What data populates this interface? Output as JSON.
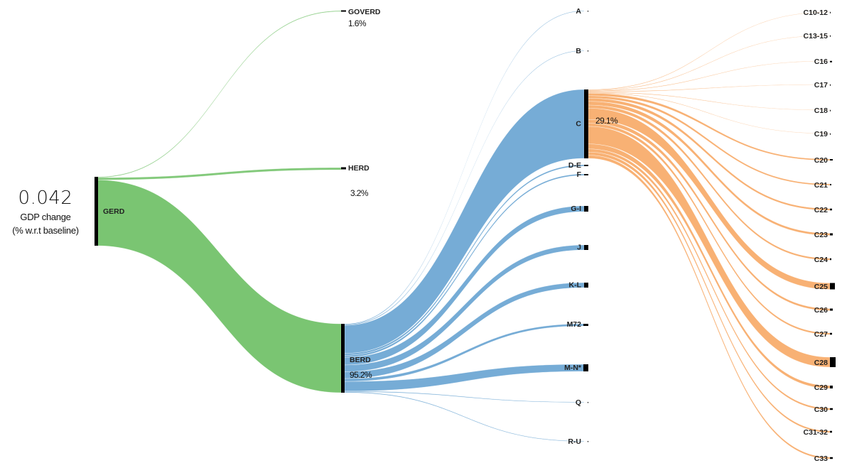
{
  "root": {
    "value": "0.042",
    "line1": "GDP change",
    "line2": "(% w.r.t baseline)"
  },
  "colors": {
    "gerd": "#6cbf63",
    "berd": "#6fa8d4",
    "c": "#f7a35c",
    "bar": "#000000"
  },
  "nodes": {
    "gerd": {
      "label": "GERD"
    },
    "goverd": {
      "label": "GOVERD",
      "pct": "1.6%"
    },
    "herd": {
      "label": "HERD",
      "pct": "3.2%"
    },
    "berd": {
      "label": "BERD",
      "pct": "95.2%"
    },
    "c": {
      "pct": "29.1%"
    }
  },
  "sectors": [
    "A",
    "B",
    "C",
    "D-E",
    "F",
    "G-I",
    "J",
    "K-L",
    "M72",
    "M-N*",
    "Q",
    "R-U"
  ],
  "subsectors": [
    "C10-12",
    "C13-15",
    "C16",
    "C17",
    "C18",
    "C19",
    "C20",
    "C21",
    "C22",
    "C23",
    "C24",
    "C25",
    "C26",
    "C27",
    "C28",
    "C29",
    "C30",
    "C31-32",
    "C33"
  ]
}
